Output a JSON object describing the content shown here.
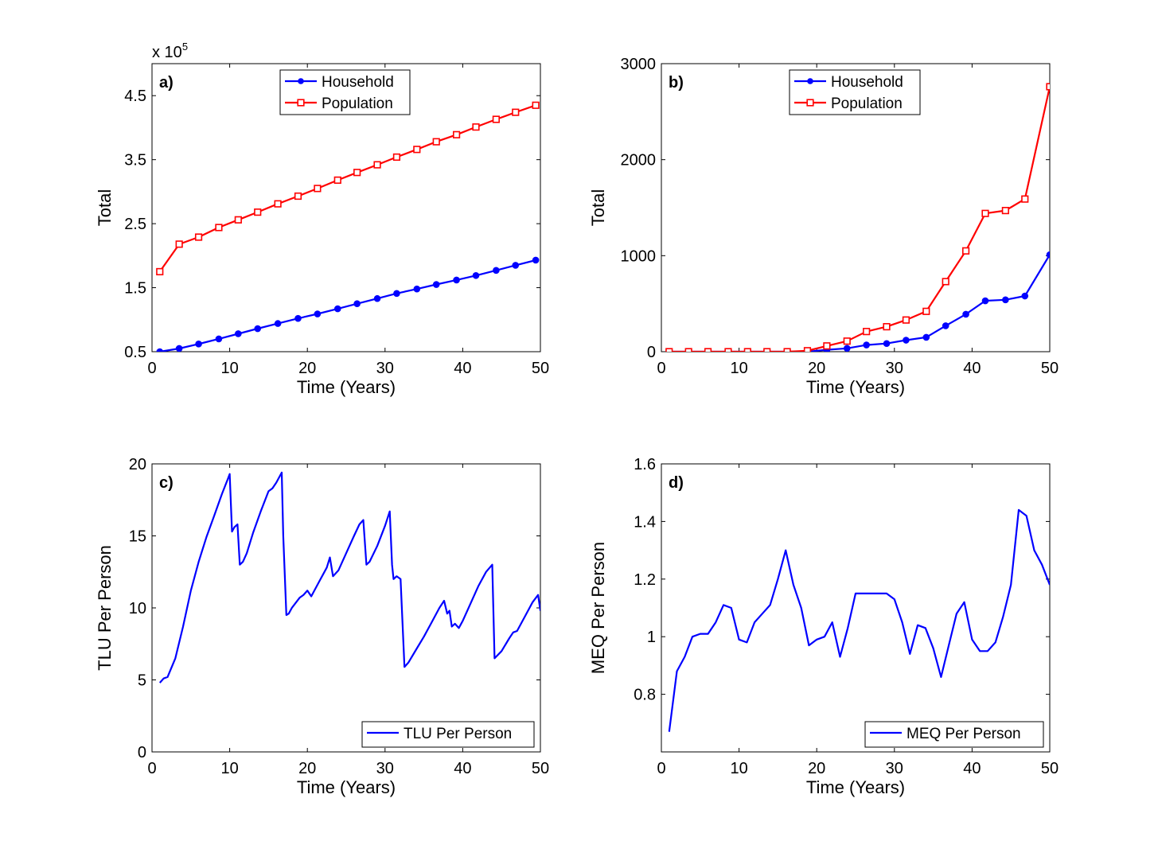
{
  "chart_data": [
    {
      "type": "line",
      "panel_label": "a)",
      "xlabel": "Time (Years)",
      "ylabel": "Total",
      "y_exponent": "x 10",
      "y_exponent_power": "5",
      "xlim": [
        0,
        50
      ],
      "ylim": [
        0.5,
        5.0
      ],
      "xticks": [
        0,
        10,
        20,
        30,
        40,
        50
      ],
      "yticks": [
        0.5,
        1.5,
        2.5,
        3.5,
        4.5
      ],
      "ytick_labels": [
        "0.5",
        "1.5",
        "2.5",
        "3.5",
        "4.5"
      ],
      "legend": "top-center",
      "series": [
        {
          "name": "Household",
          "color": "#0000ff",
          "marker": "dot",
          "x": [
            1,
            3.5,
            6,
            8.6,
            11.1,
            13.6,
            16.2,
            18.8,
            21.3,
            23.9,
            26.4,
            29,
            31.5,
            34.1,
            36.6,
            39.2,
            41.7,
            44.3,
            46.8,
            49.4
          ],
          "y": [
            0.5,
            0.55,
            0.62,
            0.7,
            0.78,
            0.86,
            0.94,
            1.02,
            1.09,
            1.17,
            1.25,
            1.33,
            1.41,
            1.48,
            1.55,
            1.62,
            1.69,
            1.77,
            1.85,
            1.93
          ]
        },
        {
          "name": "Population",
          "color": "#ff0000",
          "marker": "square",
          "x": [
            1,
            3.5,
            6,
            8.6,
            11.1,
            13.6,
            16.2,
            18.8,
            21.3,
            23.9,
            26.4,
            29,
            31.5,
            34.1,
            36.6,
            39.2,
            41.7,
            44.3,
            46.8,
            49.4
          ],
          "y": [
            1.75,
            2.18,
            2.29,
            2.44,
            2.56,
            2.68,
            2.81,
            2.93,
            3.05,
            3.18,
            3.3,
            3.42,
            3.54,
            3.66,
            3.78,
            3.89,
            4.01,
            4.13,
            4.24,
            4.35
          ]
        }
      ]
    },
    {
      "type": "line",
      "panel_label": "b)",
      "xlabel": "Time (Years)",
      "ylabel": "Total",
      "xlim": [
        0,
        50
      ],
      "ylim": [
        0,
        3000
      ],
      "xticks": [
        0,
        10,
        20,
        30,
        40,
        50
      ],
      "yticks": [
        0,
        1000,
        2000,
        3000
      ],
      "ytick_labels": [
        "0",
        "1000",
        "2000",
        "3000"
      ],
      "legend": "top-center",
      "series": [
        {
          "name": "Household",
          "color": "#0000ff",
          "marker": "dot",
          "x": [
            1,
            3.5,
            6,
            8.6,
            11.1,
            13.6,
            16.2,
            18.8,
            21.3,
            23.9,
            26.4,
            29,
            31.5,
            34.1,
            36.6,
            39.2,
            41.7,
            44.3,
            46.8,
            50
          ],
          "y": [
            0,
            0,
            0,
            0,
            0,
            0,
            0,
            0,
            20,
            35,
            70,
            85,
            120,
            150,
            270,
            390,
            530,
            540,
            580,
            1010
          ]
        },
        {
          "name": "Population",
          "color": "#ff0000",
          "marker": "square",
          "x": [
            1,
            3.5,
            6,
            8.6,
            11.1,
            13.6,
            16.2,
            18.8,
            21.3,
            23.9,
            26.4,
            29,
            31.5,
            34.1,
            36.6,
            39.2,
            41.7,
            44.3,
            46.8,
            50
          ],
          "y": [
            0,
            0,
            0,
            0,
            0,
            0,
            0,
            10,
            60,
            110,
            210,
            260,
            330,
            420,
            730,
            1050,
            1440,
            1470,
            1590,
            2760
          ]
        }
      ]
    },
    {
      "type": "line",
      "panel_label": "c)",
      "xlabel": "Time (Years)",
      "ylabel": "TLU Per Person",
      "xlim": [
        0,
        50
      ],
      "ylim": [
        0,
        20
      ],
      "xticks": [
        0,
        10,
        20,
        30,
        40,
        50
      ],
      "yticks": [
        0,
        5,
        10,
        15,
        20
      ],
      "ytick_labels": [
        "0",
        "5",
        "10",
        "15",
        "20"
      ],
      "legend": "bottom-right",
      "series": [
        {
          "name": "TLU Per Person",
          "color": "#0000ff",
          "x": [
            1,
            1.5,
            2,
            3,
            4,
            5,
            6,
            7,
            8,
            9,
            9.8,
            10,
            10.3,
            10.6,
            11,
            11.3,
            11.7,
            12.2,
            13,
            14,
            15,
            15.5,
            16,
            16.7,
            16.9,
            17.3,
            17.6,
            18,
            19,
            19.5,
            20,
            20.5,
            21.5,
            22.5,
            22.9,
            23.3,
            24,
            25,
            26,
            26.7,
            27.2,
            27.6,
            28,
            29,
            30,
            30.6,
            30.9,
            31.1,
            31.5,
            32,
            32.5,
            33,
            34,
            35,
            36,
            37,
            37.6,
            38,
            38.3,
            38.6,
            39,
            39.5,
            40,
            41,
            42,
            43,
            43.8,
            44.1,
            45,
            46,
            46.5,
            47,
            48,
            49,
            49.7,
            50
          ],
          "y": [
            4.8,
            5.1,
            5.2,
            6.5,
            8.7,
            11.2,
            13.2,
            14.9,
            16.4,
            17.9,
            19.0,
            19.3,
            15.3,
            15.6,
            15.8,
            13.0,
            13.2,
            13.8,
            15.2,
            16.7,
            18.1,
            18.3,
            18.7,
            19.4,
            15.0,
            9.5,
            9.6,
            10.0,
            10.7,
            10.9,
            11.2,
            10.8,
            11.8,
            12.8,
            13.5,
            12.2,
            12.6,
            13.8,
            15.0,
            15.8,
            16.1,
            13.0,
            13.2,
            14.3,
            15.7,
            16.7,
            13.0,
            12.0,
            12.2,
            12.0,
            5.9,
            6.2,
            7.1,
            8.0,
            9.0,
            10.0,
            10.5,
            9.6,
            9.8,
            8.7,
            8.9,
            8.6,
            9.1,
            10.3,
            11.5,
            12.5,
            13.0,
            6.5,
            7.0,
            7.9,
            8.3,
            8.4,
            9.4,
            10.4,
            10.9,
            9.8
          ]
        }
      ]
    },
    {
      "type": "line",
      "panel_label": "d)",
      "xlabel": "Time (Years)",
      "ylabel": "MEQ Per Person",
      "xlim": [
        0,
        50
      ],
      "ylim": [
        0.6,
        1.6
      ],
      "xticks": [
        0,
        10,
        20,
        30,
        40,
        50
      ],
      "yticks": [
        0.8,
        1,
        1.2,
        1.4,
        1.6
      ],
      "ytick_labels": [
        "0.8",
        "1",
        "1.2",
        "1.4",
        "1.6"
      ],
      "legend": "bottom-right",
      "series": [
        {
          "name": "MEQ Per Person",
          "color": "#0000ff",
          "x": [
            1,
            2,
            3,
            4,
            5,
            6,
            7,
            8,
            9,
            10,
            11,
            12,
            13,
            14,
            15,
            16,
            17,
            18,
            19,
            20,
            21,
            22,
            23,
            24,
            25,
            26,
            27,
            28,
            29,
            30,
            31,
            32,
            33,
            34,
            35,
            36,
            37,
            38,
            39,
            40,
            41,
            42,
            43,
            44,
            45,
            46,
            47,
            48,
            49,
            50
          ],
          "y": [
            0.67,
            0.88,
            0.93,
            1.0,
            1.01,
            1.01,
            1.05,
            1.11,
            1.1,
            0.99,
            0.98,
            1.05,
            1.08,
            1.11,
            1.2,
            1.3,
            1.18,
            1.1,
            0.97,
            0.99,
            1.0,
            1.05,
            0.93,
            1.03,
            1.15,
            1.15,
            1.15,
            1.15,
            1.15,
            1.13,
            1.05,
            0.94,
            1.04,
            1.03,
            0.96,
            0.86,
            0.97,
            1.08,
            1.12,
            0.99,
            0.95,
            0.95,
            0.98,
            1.07,
            1.18,
            1.44,
            1.42,
            1.3,
            1.25,
            1.18
          ]
        }
      ]
    }
  ]
}
